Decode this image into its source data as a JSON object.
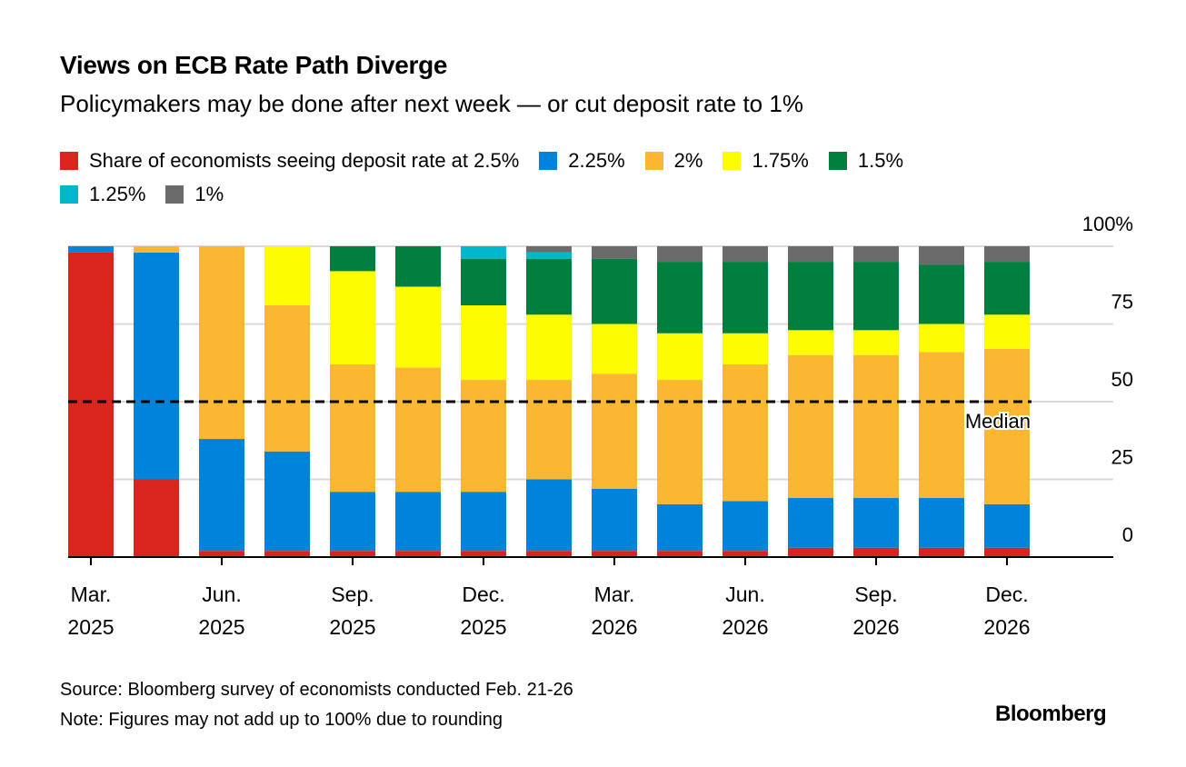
{
  "title": "Views on ECB Rate Path Diverge",
  "subtitle": "Policymakers may be done after next week — or cut deposit rate to 1%",
  "footer": {
    "source": "Source: Bloomberg survey of economists conducted Feb. 21-26",
    "note": "Note: Figures may not add up to 100% due to rounding",
    "logo": "Bloomberg"
  },
  "chart_data": {
    "type": "bar",
    "stacked": true,
    "categories": [
      "Mar.\n2025",
      "",
      "Jun.\n2025",
      "",
      "Sep.\n2025",
      "",
      "Dec.\n2025",
      "",
      "Mar.\n2026",
      "",
      "Jun.\n2026",
      "",
      "Sep.\n2026",
      "",
      "Dec.\n2026"
    ],
    "series": [
      {
        "name": "Share of economists seeing deposit rate at 2.5%",
        "color": "#d9251c",
        "values": [
          98,
          25,
          2,
          2,
          2,
          2,
          2,
          2,
          2,
          2,
          2,
          3,
          3,
          3,
          3
        ]
      },
      {
        "name": "2.25%",
        "color": "#0084db",
        "values": [
          2,
          73,
          36,
          32,
          19,
          19,
          19,
          23,
          20,
          15,
          16,
          16,
          16,
          16,
          14
        ]
      },
      {
        "name": "2%",
        "color": "#fbb731",
        "values": [
          0,
          2,
          62,
          47,
          41,
          40,
          36,
          32,
          37,
          40,
          44,
          46,
          46,
          47,
          50
        ]
      },
      {
        "name": "1.75%",
        "color": "#fdfd00",
        "values": [
          0,
          0,
          0,
          19,
          30,
          26,
          24,
          21,
          16,
          15,
          10,
          8,
          8,
          9,
          11
        ]
      },
      {
        "name": "1.5%",
        "color": "#007f3f",
        "values": [
          0,
          0,
          0,
          0,
          8,
          13,
          15,
          18,
          21,
          23,
          23,
          22,
          22,
          19,
          17
        ]
      },
      {
        "name": "1.25%",
        "color": "#00b7cc",
        "values": [
          0,
          0,
          0,
          0,
          0,
          0,
          4,
          2,
          0,
          0,
          0,
          0,
          0,
          0,
          0
        ]
      },
      {
        "name": "1%",
        "color": "#6b6b6b",
        "values": [
          0,
          0,
          0,
          0,
          0,
          0,
          0,
          2,
          4,
          5,
          5,
          5,
          5,
          6,
          5
        ]
      }
    ],
    "ylim": [
      0,
      100
    ],
    "yticks": [
      {
        "value": 100,
        "label": "100%"
      },
      {
        "value": 75,
        "label": "75"
      },
      {
        "value": 50,
        "label": "50"
      },
      {
        "value": 25,
        "label": "25"
      },
      {
        "value": 0,
        "label": "0"
      }
    ],
    "grid": true,
    "legend": "top",
    "reference_line": {
      "value": 50,
      "label": "Median",
      "style": "dashed"
    }
  }
}
